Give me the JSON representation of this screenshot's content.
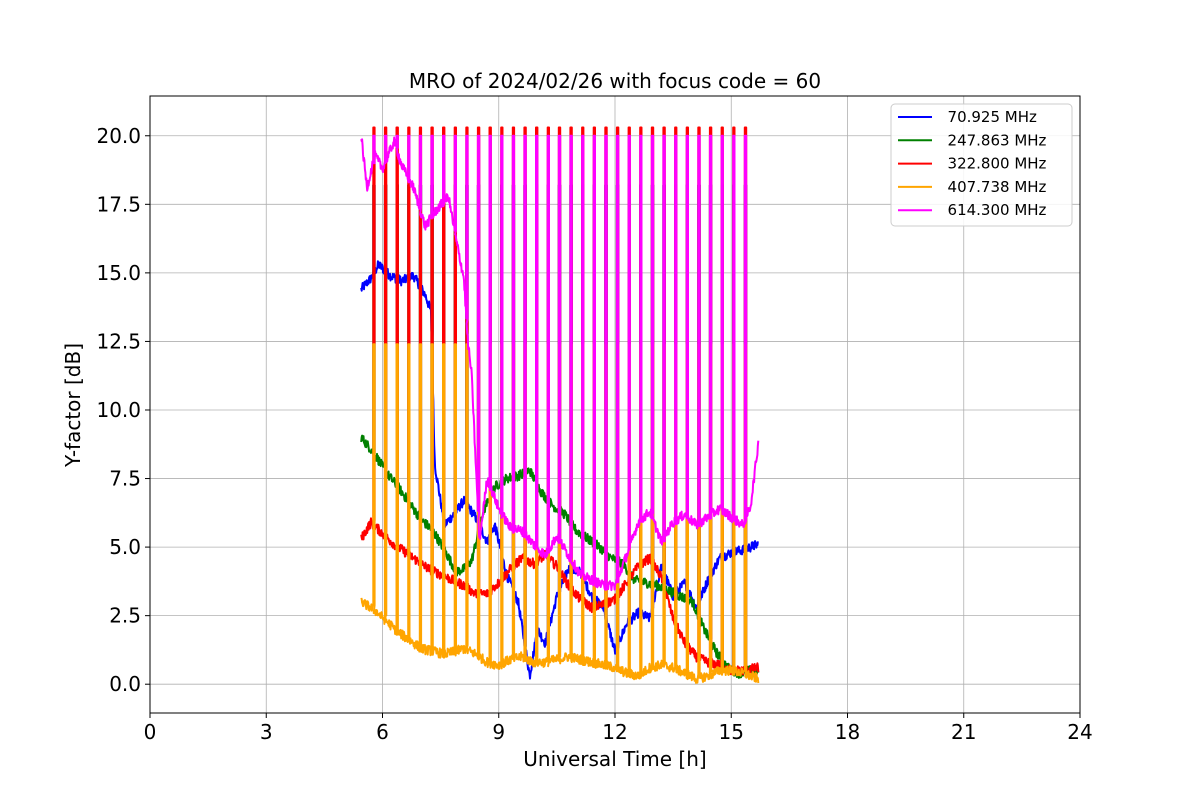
{
  "chart_data": {
    "type": "line",
    "title": "MRO of 2024/02/26 with focus code = 60",
    "xlabel": "Universal Time [h]",
    "ylabel": "Y-factor [dB]",
    "xlim": [
      0,
      24
    ],
    "ylim": [
      -1.05,
      21.45
    ],
    "xticks": [
      0,
      3,
      6,
      9,
      12,
      15,
      18,
      21,
      24
    ],
    "xtick_labels": [
      "0",
      "3",
      "6",
      "9",
      "12",
      "15",
      "18",
      "21",
      "24"
    ],
    "yticks": [
      0,
      2.5,
      5,
      7.5,
      10,
      12.5,
      15,
      17.5,
      20
    ],
    "ytick_labels": [
      "0.0",
      "2.5",
      "5.0",
      "7.5",
      "10.0",
      "12.5",
      "15.0",
      "17.5",
      "20.0"
    ],
    "grid": true,
    "legend_position": "top-right",
    "data_range_hours": [
      5.45,
      15.7
    ],
    "calibration_pulse_interval_hours": 0.3,
    "series": [
      {
        "name": "  70.925 MHz",
        "color": "#0000ff",
        "peak": 18.2,
        "x": [
          5.45,
          5.7,
          5.9,
          6.2,
          6.5,
          6.8,
          7.1,
          7.25,
          7.35,
          7.6,
          7.9,
          8.1,
          8.4,
          8.7,
          8.9,
          9.2,
          9.5,
          9.8,
          10.0,
          10.2,
          10.5,
          10.8,
          11.1,
          11.4,
          11.7,
          12.0,
          12.3,
          12.6,
          12.9,
          13.2,
          13.5,
          13.8,
          14.1,
          14.4,
          14.7,
          15.0,
          15.3,
          15.7
        ],
        "y": [
          14.4,
          14.8,
          15.3,
          14.9,
          14.7,
          14.9,
          14.2,
          13.6,
          8.0,
          5.8,
          6.3,
          6.7,
          6.1,
          5.2,
          5.8,
          4.0,
          3.0,
          0.3,
          2.0,
          1.5,
          3.2,
          4.2,
          4.1,
          3.2,
          2.8,
          1.2,
          2.2,
          2.6,
          2.4,
          4.3,
          3.2,
          3.7,
          2.8,
          3.8,
          4.6,
          4.8,
          4.9,
          5.1
        ]
      },
      {
        "name": "  247.863 MHz",
        "color": "#008000",
        "peak": 18.2,
        "x": [
          5.45,
          5.8,
          6.1,
          6.4,
          6.7,
          7.0,
          7.3,
          7.6,
          7.9,
          8.1,
          8.3,
          8.6,
          8.9,
          9.2,
          9.5,
          9.8,
          10.1,
          10.4,
          10.7,
          11.0,
          11.3,
          11.6,
          11.9,
          12.2,
          12.5,
          12.8,
          13.1,
          13.4,
          13.7,
          14.0,
          14.3,
          14.6,
          14.9,
          15.2,
          15.5,
          15.7
        ],
        "y": [
          9.0,
          8.4,
          7.7,
          7.2,
          6.6,
          6.0,
          5.6,
          4.9,
          4.1,
          4.2,
          4.5,
          6.3,
          7.2,
          7.5,
          7.6,
          7.8,
          7.0,
          6.5,
          6.2,
          5.6,
          5.3,
          5.0,
          4.6,
          4.4,
          3.8,
          3.7,
          3.6,
          3.4,
          3.2,
          3.0,
          2.0,
          1.2,
          0.6,
          0.4,
          0.5,
          0.5
        ]
      },
      {
        "name": "  322.800 MHz",
        "color": "#ff0000",
        "peak": 20.3,
        "x": [
          5.45,
          5.7,
          6.0,
          6.3,
          6.6,
          6.9,
          7.2,
          7.5,
          7.8,
          8.1,
          8.4,
          8.7,
          9.0,
          9.3,
          9.6,
          9.9,
          10.2,
          10.5,
          10.8,
          11.1,
          11.4,
          11.7,
          12.0,
          12.3,
          12.6,
          12.9,
          13.2,
          13.5,
          13.8,
          14.1,
          14.4,
          14.7,
          15.0,
          15.3,
          15.7
        ],
        "y": [
          5.3,
          5.9,
          5.5,
          5.1,
          4.8,
          4.5,
          4.2,
          4.0,
          3.8,
          3.6,
          3.3,
          3.3,
          3.7,
          4.2,
          4.6,
          4.4,
          4.7,
          4.3,
          3.6,
          3.1,
          2.8,
          2.9,
          3.1,
          3.7,
          4.3,
          4.6,
          3.9,
          2.4,
          1.5,
          1.0,
          0.8,
          0.7,
          0.5,
          0.5,
          0.6
        ]
      },
      {
        "name": "  407.738 MHz",
        "color": "#ffa500",
        "peak": 12.4,
        "x": [
          5.45,
          5.8,
          6.1,
          6.4,
          6.7,
          7.0,
          7.3,
          7.6,
          7.9,
          8.1,
          8.4,
          8.7,
          9.0,
          9.3,
          9.6,
          9.9,
          10.2,
          10.5,
          10.8,
          11.1,
          11.4,
          11.7,
          12.0,
          12.3,
          12.6,
          12.9,
          13.2,
          13.5,
          13.8,
          14.1,
          14.4,
          14.7,
          15.0,
          15.3,
          15.7
        ],
        "y": [
          3.0,
          2.7,
          2.3,
          1.9,
          1.6,
          1.3,
          1.2,
          1.1,
          1.2,
          1.3,
          1.1,
          0.8,
          0.7,
          0.9,
          1.0,
          0.8,
          0.8,
          0.9,
          1.0,
          0.9,
          0.8,
          0.7,
          0.6,
          0.4,
          0.3,
          0.6,
          0.7,
          0.6,
          0.4,
          0.2,
          0.3,
          0.5,
          0.5,
          0.4,
          0.2
        ]
      },
      {
        "name": "  614.300 MHz",
        "color": "#ff00ff",
        "peak": 20.0,
        "x": [
          5.45,
          5.6,
          5.8,
          6.0,
          6.3,
          6.5,
          6.8,
          7.1,
          7.4,
          7.7,
          7.9,
          8.1,
          8.2,
          8.3,
          8.5,
          8.7,
          9.0,
          9.3,
          9.6,
          9.9,
          10.2,
          10.5,
          10.8,
          11.1,
          11.4,
          11.7,
          12.0,
          12.3,
          12.6,
          12.9,
          13.2,
          13.5,
          13.8,
          14.1,
          14.4,
          14.7,
          15.0,
          15.3,
          15.5,
          15.7
        ],
        "y": [
          20.0,
          18.1,
          19.3,
          18.8,
          19.8,
          18.9,
          18.1,
          16.7,
          17.3,
          17.8,
          16.2,
          14.8,
          12.5,
          11.3,
          5.2,
          7.5,
          6.4,
          5.7,
          5.6,
          5.1,
          4.7,
          5.4,
          4.7,
          4.0,
          3.8,
          3.6,
          3.6,
          4.7,
          5.9,
          6.3,
          5.2,
          5.9,
          6.2,
          5.8,
          6.1,
          6.4,
          6.1,
          5.8,
          6.5,
          8.8
        ]
      }
    ]
  }
}
